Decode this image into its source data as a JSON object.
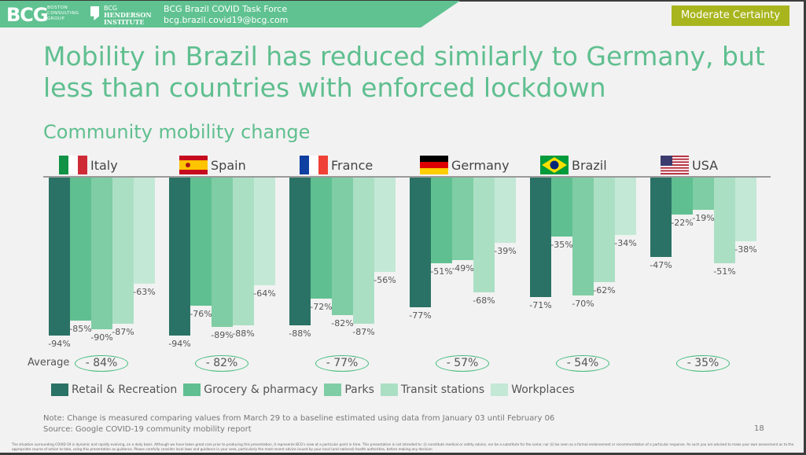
{
  "header": {
    "logo_text": "BCG",
    "logo_sub": "BOSTON CONSULTING GROUP",
    "institute_line1": "BCG",
    "institute_line2": "HENDERSON",
    "institute_line3": "INSTITUTE",
    "task_force": "BCG Brazil COVID Task Force",
    "email": "bcg.brazil.covid19@bcg.com",
    "certainty_badge": "Moderate Certainty"
  },
  "title": "Mobility in Brazil has reduced similarly to Germany, but less than countries with enforced lockdown",
  "subtitle": "Community mobility change",
  "colors": {
    "brand_green": "#60c291",
    "title_green": "#5fbf8f",
    "badge": "#a8b51d",
    "series": [
      "#2a7265",
      "#5fbf90",
      "#7fcda4",
      "#abdfc4",
      "#c3e8d6"
    ]
  },
  "chart_data": {
    "type": "bar",
    "orientation": "vertical-negative",
    "series_names": [
      "Retail & Recreation",
      "Grocery & pharmacy",
      "Parks",
      "Transit stations",
      "Workplaces"
    ],
    "ylim": [
      -100,
      0
    ],
    "grid": false,
    "legend_position": "bottom",
    "average_label": "Average",
    "groups": [
      {
        "country": "Italy",
        "flag": "italy-flag",
        "values": [
          -94,
          -85,
          -90,
          -87,
          -63
        ],
        "labels": [
          "-94%",
          "-85%",
          "-90%",
          "-87%",
          "-63%"
        ],
        "average": "- 84%"
      },
      {
        "country": "Spain",
        "flag": "spain-flag",
        "values": [
          -94,
          -76,
          -89,
          -88,
          -64
        ],
        "labels": [
          "-94%",
          "-76%",
          "-89%",
          "-88%",
          "-64%"
        ],
        "average": "- 82%"
      },
      {
        "country": "France",
        "flag": "france-flag",
        "values": [
          -88,
          -72,
          -82,
          -87,
          -56
        ],
        "labels": [
          "-88%",
          "-72%",
          "-82%",
          "-87%",
          "-56%"
        ],
        "average": "- 77%"
      },
      {
        "country": "Germany",
        "flag": "germany-flag",
        "values": [
          -77,
          -51,
          -49,
          -68,
          -39
        ],
        "labels": [
          "-77%",
          "-51%",
          "-49%",
          "-68%",
          "-39%"
        ],
        "average": "- 57%"
      },
      {
        "country": "Brazil",
        "flag": "brazil-flag",
        "values": [
          -71,
          -35,
          -70,
          -62,
          -34
        ],
        "labels": [
          "-71%",
          "-35%",
          "-70%",
          "-62%",
          "-34%"
        ],
        "average": "- 54%"
      },
      {
        "country": "USA",
        "flag": "usa-flag",
        "values": [
          -47,
          -22,
          -19,
          -51,
          -38
        ],
        "labels": [
          "-47%",
          "-22%",
          "-19%",
          "-51%",
          "-38%"
        ],
        "average": "- 35%"
      }
    ]
  },
  "footer": {
    "note": "Note: Change is measured comparing values from March 29 to a baseline estimated using data from January 03 until February 06",
    "source": "Source: Google COVID-19 community mobility report",
    "page_number": "18",
    "disclaimer": "The situation surrounding COVID-19 is dynamic and rapidly evolving, on a daily basis. Although we have taken great care prior to producing this presentation, it represents BCG's view at a particular point in time. This presentation is not intended to: (i) constitute medical or safety advice, nor be a substitute for the same; nor (ii) be seen as a formal endorsement or recommendation of a particular response. As such you are advised to make your own assessment as to the appropriate course of action to take, using this presentation as guidance. Please carefully consider local laws and guidance in your area, particularly the most recent advice issued by your local (and national) health authorities, before making any decision"
  }
}
